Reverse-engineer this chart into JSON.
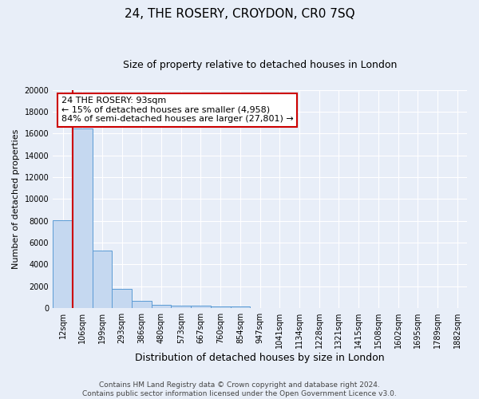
{
  "title": "24, THE ROSERY, CROYDON, CR0 7SQ",
  "subtitle": "Size of property relative to detached houses in London",
  "xlabel": "Distribution of detached houses by size in London",
  "ylabel": "Number of detached properties",
  "categories": [
    "12sqm",
    "106sqm",
    "199sqm",
    "293sqm",
    "386sqm",
    "480sqm",
    "573sqm",
    "667sqm",
    "760sqm",
    "854sqm",
    "947sqm",
    "1041sqm",
    "1134sqm",
    "1228sqm",
    "1321sqm",
    "1415sqm",
    "1508sqm",
    "1602sqm",
    "1695sqm",
    "1789sqm",
    "1882sqm"
  ],
  "values": [
    8050,
    16500,
    5250,
    1750,
    700,
    290,
    220,
    195,
    185,
    165,
    0,
    0,
    0,
    0,
    0,
    0,
    0,
    0,
    0,
    0,
    0
  ],
  "bar_color": "#c5d8f0",
  "bar_edge_color": "#5b9bd5",
  "background_color": "#e8eef8",
  "grid_color": "#ffffff",
  "vline_color": "#cc0000",
  "vline_x": 0.5,
  "annotation_title": "24 THE ROSERY: 93sqm",
  "annotation_line1": "← 15% of detached houses are smaller (4,958)",
  "annotation_line2": "84% of semi-detached houses are larger (27,801) →",
  "annotation_box_facecolor": "#ffffff",
  "annotation_box_edgecolor": "#cc0000",
  "footer_line1": "Contains HM Land Registry data © Crown copyright and database right 2024.",
  "footer_line2": "Contains public sector information licensed under the Open Government Licence v3.0.",
  "ylim": [
    0,
    20000
  ],
  "yticks": [
    0,
    2000,
    4000,
    6000,
    8000,
    10000,
    12000,
    14000,
    16000,
    18000,
    20000
  ],
  "title_fontsize": 11,
  "subtitle_fontsize": 9,
  "ylabel_fontsize": 8,
  "xlabel_fontsize": 9,
  "tick_fontsize": 7,
  "annotation_fontsize": 8,
  "footer_fontsize": 6.5
}
